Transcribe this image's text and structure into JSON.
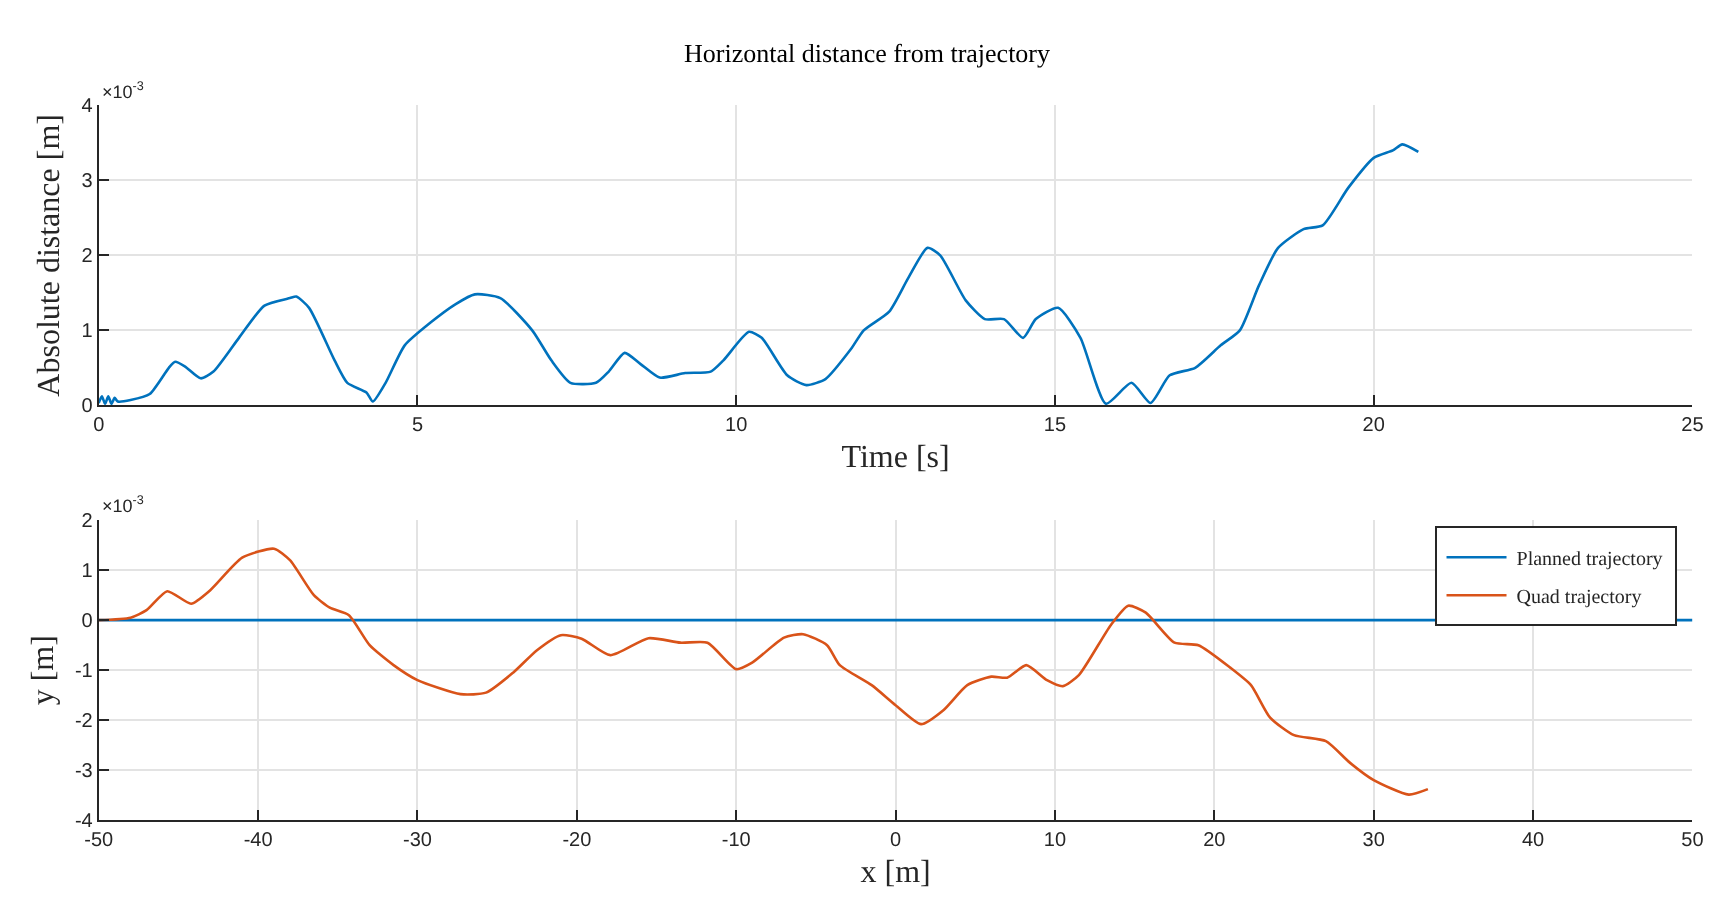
{
  "chart_data": [
    {
      "type": "line",
      "title": "Horizontal distance from trajectory",
      "xlabel": "Time [s]",
      "ylabel": "Absolute distance [m]",
      "annotations": [
        "×10$^{-3}$"
      ],
      "xlim": [
        0,
        25
      ],
      "xticks": [
        0,
        5,
        10,
        15,
        20,
        25
      ],
      "ylim": [
        0,
        4
      ],
      "yticks": [
        0,
        1,
        2,
        3,
        4
      ],
      "grid": true,
      "legend": false,
      "series": [
        {
          "color": "#0072bd",
          "x": [
            0,
            0.05,
            0.1,
            0.15,
            0.2,
            0.25,
            0.3,
            0.5,
            0.8,
            1.1,
            1.2,
            1.35,
            1.6,
            1.8,
            2.2,
            2.6,
            3.0,
            3.1,
            3.3,
            3.7,
            3.9,
            4.2,
            4.3,
            4.5,
            4.8,
            5.2,
            5.6,
            5.9,
            6.3,
            6.8,
            7.1,
            7.4,
            7.8,
            8.0,
            8.25,
            8.5,
            8.8,
            9.2,
            9.6,
            9.8,
            10.2,
            10.4,
            10.8,
            11.1,
            11.4,
            11.8,
            12.0,
            12.4,
            12.7,
            13.0,
            13.2,
            13.6,
            13.9,
            14.2,
            14.5,
            14.7,
            15.05,
            15.4,
            15.8,
            16.2,
            16.5,
            16.8,
            17.2,
            17.6,
            17.9,
            18.2,
            18.5,
            18.9,
            19.2,
            19.6,
            20.0,
            20.3,
            20.45,
            20.7
          ],
          "values": [
            0.03,
            0.12,
            0.02,
            0.12,
            0.02,
            0.1,
            0.05,
            0.07,
            0.15,
            0.5,
            0.58,
            0.52,
            0.36,
            0.45,
            0.9,
            1.33,
            1.43,
            1.45,
            1.3,
            0.6,
            0.3,
            0.17,
            0.05,
            0.3,
            0.8,
            1.1,
            1.35,
            1.48,
            1.43,
            1.0,
            0.6,
            0.3,
            0.3,
            0.45,
            0.7,
            0.55,
            0.37,
            0.43,
            0.45,
            0.6,
            0.98,
            0.9,
            0.4,
            0.27,
            0.35,
            0.75,
            1.0,
            1.25,
            1.7,
            2.1,
            2.0,
            1.4,
            1.15,
            1.15,
            0.9,
            1.15,
            1.3,
            0.9,
            0.02,
            0.3,
            0.03,
            0.4,
            0.5,
            0.8,
            1.0,
            1.6,
            2.1,
            2.35,
            2.4,
            2.9,
            3.3,
            3.4,
            3.48,
            3.38
          ]
        }
      ]
    },
    {
      "type": "line",
      "xlabel": "x [m]",
      "ylabel": "y [m]",
      "annotations": [
        "×10$^{-3}$"
      ],
      "xlim": [
        -50,
        50
      ],
      "xticks": [
        -50,
        -40,
        -30,
        -20,
        -10,
        0,
        10,
        20,
        30,
        40,
        50
      ],
      "ylim": [
        -4,
        2
      ],
      "yticks": [
        -4,
        -3,
        -2,
        -1,
        0,
        1,
        2
      ],
      "grid": true,
      "legend": "top right",
      "series": [
        {
          "name": "Planned trajectory",
          "color": "#0072bd",
          "x": [
            -50,
            50
          ],
          "values": [
            0,
            0
          ]
        },
        {
          "name": "Quad trajectory",
          "color": "#d95319",
          "x": [
            -50,
            -48,
            -47,
            -45.7,
            -44.2,
            -43,
            -41,
            -39,
            -38,
            -36.5,
            -35.5,
            -34.3,
            -33,
            -31.5,
            -30,
            -27.3,
            -25.7,
            -24,
            -22.5,
            -21,
            -19.7,
            -17.9,
            -15.5,
            -13.5,
            -11.8,
            -10,
            -9,
            -7,
            -5.8,
            -4.3,
            -3.5,
            -1.5,
            0,
            1.6,
            3,
            4.5,
            6,
            7,
            8.2,
            9.5,
            10.5,
            11.5,
            13.5,
            14.6,
            15.7,
            17.5,
            19,
            21,
            22.3,
            23.5,
            25,
            27,
            28.5,
            30,
            32.2,
            33.4
          ],
          "values": [
            0,
            0.05,
            0.2,
            0.58,
            0.33,
            0.6,
            1.25,
            1.43,
            1.2,
            0.5,
            0.25,
            0.1,
            -0.5,
            -0.9,
            -1.2,
            -1.48,
            -1.45,
            -1.05,
            -0.6,
            -0.3,
            -0.37,
            -0.7,
            -0.36,
            -0.45,
            -0.45,
            -0.98,
            -0.85,
            -0.35,
            -0.28,
            -0.5,
            -0.9,
            -1.3,
            -1.7,
            -2.08,
            -1.8,
            -1.3,
            -1.13,
            -1.15,
            -0.9,
            -1.2,
            -1.32,
            -1.1,
            -0.1,
            0.29,
            0.15,
            -0.45,
            -0.5,
            -0.95,
            -1.3,
            -1.95,
            -2.3,
            -2.42,
            -2.85,
            -3.2,
            -3.49,
            -3.38
          ]
        }
      ]
    }
  ]
}
